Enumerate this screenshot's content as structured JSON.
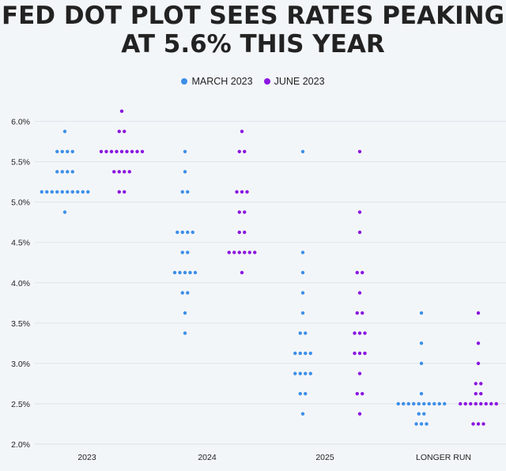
{
  "title_line1": "FED DOT PLOT SEES RATES PEAKING",
  "title_line2": "AT 5.6% THIS YEAR",
  "legend": [
    {
      "label": "MARCH 2023",
      "color": "#3d8fe8"
    },
    {
      "label": "JUNE 2023",
      "color": "#8a16e0"
    }
  ],
  "chart_data": {
    "type": "scatter",
    "title": "FED DOT PLOT SEES RATES PEAKING AT 5.6% THIS YEAR",
    "categories": [
      "2023",
      "2024",
      "2025",
      "LONGER RUN"
    ],
    "y_tick_labels": [
      "6.0%",
      "5.5%",
      "5.0%",
      "4.5%",
      "4.0%",
      "3.5%",
      "3.0%",
      "2.5%",
      "2.0%"
    ],
    "ylim": [
      2.0,
      6.0
    ],
    "grid": true,
    "legend_position": "top",
    "series": [
      {
        "name": "MARCH 2023",
        "color": "#3d8fe8",
        "dots": [
          {
            "x": "2023",
            "y": 5.875,
            "count": 1
          },
          {
            "x": "2023",
            "y": 5.625,
            "count": 4
          },
          {
            "x": "2023",
            "y": 5.375,
            "count": 4
          },
          {
            "x": "2023",
            "y": 5.125,
            "count": 10
          },
          {
            "x": "2023",
            "y": 4.875,
            "count": 1
          },
          {
            "x": "2024",
            "y": 5.625,
            "count": 1
          },
          {
            "x": "2024",
            "y": 5.375,
            "count": 1
          },
          {
            "x": "2024",
            "y": 5.125,
            "count": 2
          },
          {
            "x": "2024",
            "y": 4.625,
            "count": 4
          },
          {
            "x": "2024",
            "y": 4.375,
            "count": 2
          },
          {
            "x": "2024",
            "y": 4.125,
            "count": 5
          },
          {
            "x": "2024",
            "y": 3.875,
            "count": 2
          },
          {
            "x": "2024",
            "y": 3.625,
            "count": 1
          },
          {
            "x": "2024",
            "y": 3.375,
            "count": 1
          },
          {
            "x": "2025",
            "y": 5.625,
            "count": 1
          },
          {
            "x": "2025",
            "y": 4.375,
            "count": 1
          },
          {
            "x": "2025",
            "y": 4.125,
            "count": 1
          },
          {
            "x": "2025",
            "y": 3.875,
            "count": 1
          },
          {
            "x": "2025",
            "y": 3.625,
            "count": 1
          },
          {
            "x": "2025",
            "y": 3.375,
            "count": 2
          },
          {
            "x": "2025",
            "y": 3.125,
            "count": 4
          },
          {
            "x": "2025",
            "y": 2.875,
            "count": 4
          },
          {
            "x": "2025",
            "y": 2.625,
            "count": 2
          },
          {
            "x": "2025",
            "y": 2.375,
            "count": 1
          },
          {
            "x": "LONGER RUN",
            "y": 3.625,
            "count": 1
          },
          {
            "x": "LONGER RUN",
            "y": 3.25,
            "count": 1
          },
          {
            "x": "LONGER RUN",
            "y": 3.0,
            "count": 1
          },
          {
            "x": "LONGER RUN",
            "y": 2.625,
            "count": 1
          },
          {
            "x": "LONGER RUN",
            "y": 2.5,
            "count": 10
          },
          {
            "x": "LONGER RUN",
            "y": 2.375,
            "count": 2
          },
          {
            "x": "LONGER RUN",
            "y": 2.25,
            "count": 3
          }
        ]
      },
      {
        "name": "JUNE 2023",
        "color": "#8a16e0",
        "dots": [
          {
            "x": "2023",
            "y": 6.125,
            "count": 1
          },
          {
            "x": "2023",
            "y": 5.875,
            "count": 2
          },
          {
            "x": "2023",
            "y": 5.625,
            "count": 9
          },
          {
            "x": "2023",
            "y": 5.375,
            "count": 4
          },
          {
            "x": "2023",
            "y": 5.125,
            "count": 2
          },
          {
            "x": "2024",
            "y": 5.875,
            "count": 1
          },
          {
            "x": "2024",
            "y": 5.625,
            "count": 2
          },
          {
            "x": "2024",
            "y": 5.125,
            "count": 3
          },
          {
            "x": "2024",
            "y": 4.875,
            "count": 2
          },
          {
            "x": "2024",
            "y": 4.625,
            "count": 2
          },
          {
            "x": "2024",
            "y": 4.375,
            "count": 6
          },
          {
            "x": "2024",
            "y": 4.125,
            "count": 1
          },
          {
            "x": "2025",
            "y": 5.625,
            "count": 1
          },
          {
            "x": "2025",
            "y": 4.875,
            "count": 1
          },
          {
            "x": "2025",
            "y": 4.625,
            "count": 1
          },
          {
            "x": "2025",
            "y": 4.125,
            "count": 2
          },
          {
            "x": "2025",
            "y": 3.875,
            "count": 1
          },
          {
            "x": "2025",
            "y": 3.625,
            "count": 2
          },
          {
            "x": "2025",
            "y": 3.375,
            "count": 3
          },
          {
            "x": "2025",
            "y": 3.125,
            "count": 3
          },
          {
            "x": "2025",
            "y": 2.875,
            "count": 1
          },
          {
            "x": "2025",
            "y": 2.625,
            "count": 2
          },
          {
            "x": "2025",
            "y": 2.375,
            "count": 1
          },
          {
            "x": "LONGER RUN",
            "y": 3.625,
            "count": 1
          },
          {
            "x": "LONGER RUN",
            "y": 3.25,
            "count": 1
          },
          {
            "x": "LONGER RUN",
            "y": 3.0,
            "count": 1
          },
          {
            "x": "LONGER RUN",
            "y": 2.75,
            "count": 2
          },
          {
            "x": "LONGER RUN",
            "y": 2.625,
            "count": 2
          },
          {
            "x": "LONGER RUN",
            "y": 2.5,
            "count": 8
          },
          {
            "x": "LONGER RUN",
            "y": 2.25,
            "count": 3
          }
        ]
      }
    ]
  }
}
